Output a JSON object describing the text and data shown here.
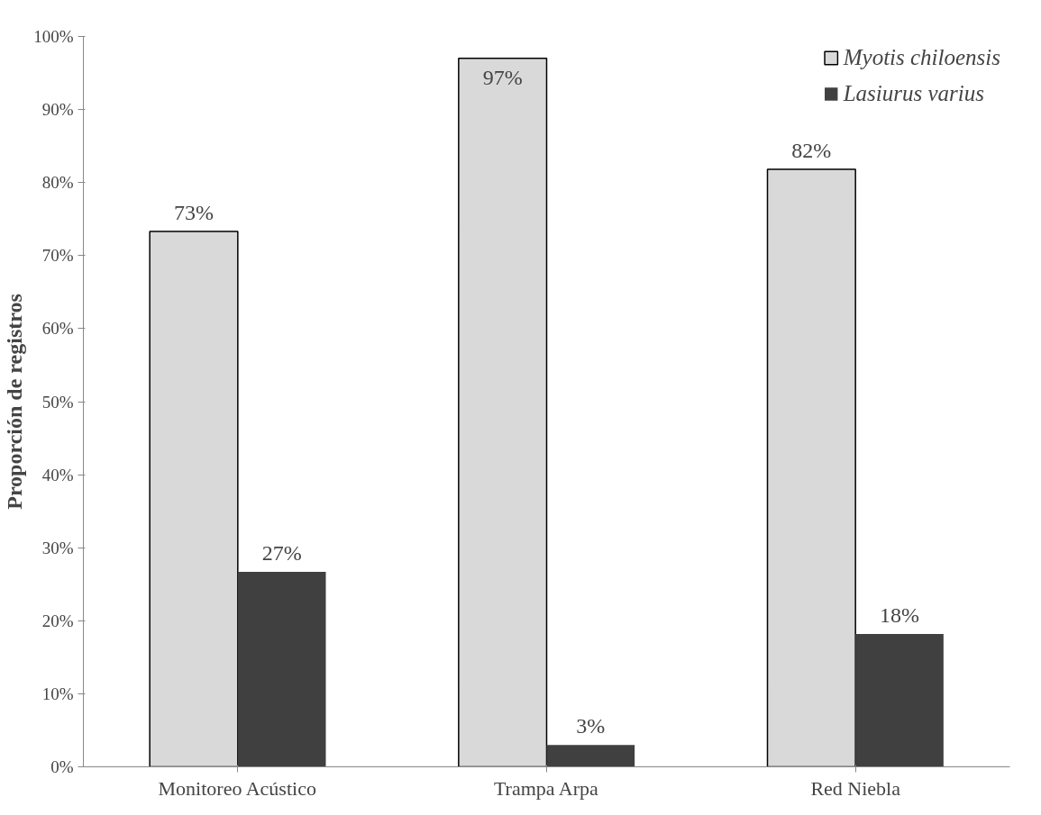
{
  "chart_data": {
    "type": "bar",
    "ylabel": "Proporción de registros",
    "categories": [
      "Monitoreo Acústico",
      "Trampa Arpa",
      "Red Niebla"
    ],
    "series": [
      {
        "name": "Myotis chiloensis",
        "color": "#d9d9d9",
        "values": [
          73.3,
          97,
          81.8
        ],
        "value_labels": [
          "73%",
          "97%",
          "82%"
        ]
      },
      {
        "name": "Lasiurus varius",
        "color": "#404040",
        "values": [
          26.7,
          3,
          18.2
        ],
        "value_labels": [
          "27%",
          "3%",
          "18%"
        ]
      }
    ],
    "ylim": [
      0,
      100
    ],
    "yticks": [
      {
        "value": 0,
        "label": "0%"
      },
      {
        "value": 10,
        "label": "10%"
      },
      {
        "value": 20,
        "label": "20%"
      },
      {
        "value": 30,
        "label": "30%"
      },
      {
        "value": 40,
        "label": "40%"
      },
      {
        "value": 50,
        "label": "50%"
      },
      {
        "value": 60,
        "label": "60%"
      },
      {
        "value": 70,
        "label": "70%"
      },
      {
        "value": 80,
        "label": "80%"
      },
      {
        "value": 90,
        "label": "90%"
      },
      {
        "value": 100,
        "label": "100%"
      }
    ],
    "grid": false,
    "legend": "top right"
  }
}
